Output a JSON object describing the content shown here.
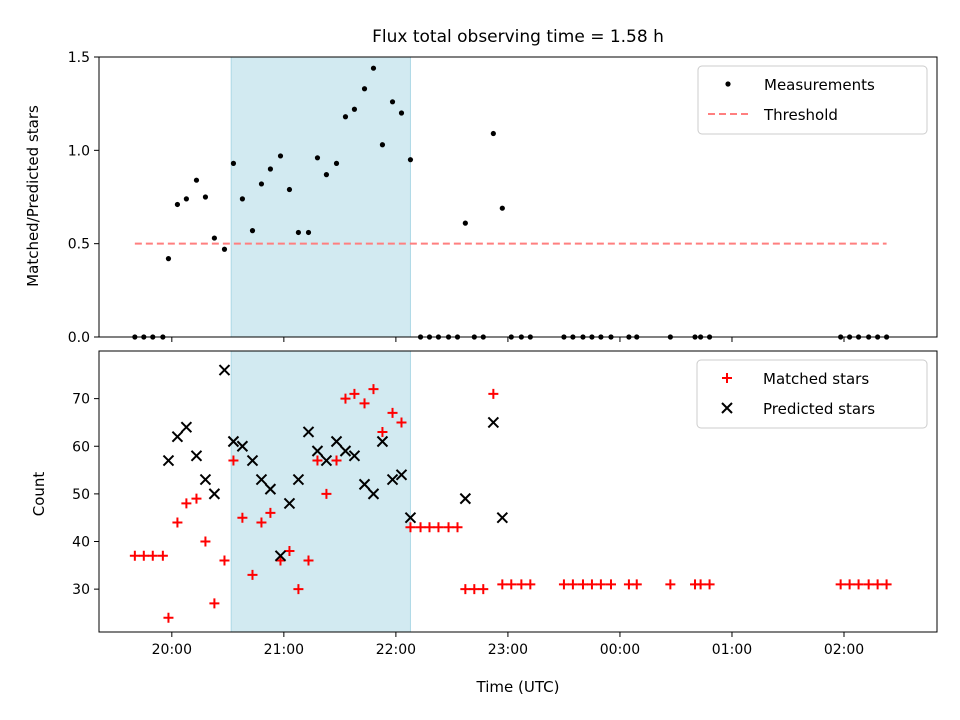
{
  "title": "Flux total observing time = 1.58 h",
  "shading": {
    "x_start": 20.53,
    "x_end": 22.13,
    "color": "#add8e6"
  },
  "x_axis": {
    "label": "Time (UTC)",
    "ticks": [
      20,
      21,
      22,
      23,
      24,
      25,
      26
    ],
    "tick_labels": [
      "20:00",
      "21:00",
      "22:00",
      "23:00",
      "00:00",
      "01:00",
      "02:00"
    ],
    "xlim": [
      19.35,
      26.83
    ]
  },
  "chart_data": [
    {
      "type": "scatter",
      "ylabel": "Matched/Predicted stars",
      "ylim": [
        0,
        1.5
      ],
      "yticks": [
        0.0,
        0.5,
        1.0,
        1.5
      ],
      "ytick_labels": [
        "0.0",
        "0.5",
        "1.0",
        "1.5"
      ],
      "legend": {
        "position": "upper right",
        "entries": [
          "Measurements",
          "Threshold"
        ]
      },
      "series": [
        {
          "name": "Measurements",
          "marker": "dot",
          "color": "#000000",
          "x": [
            19.67,
            19.75,
            19.83,
            19.92,
            19.97,
            20.05,
            20.13,
            20.22,
            20.3,
            20.38,
            20.47,
            20.55,
            20.63,
            20.72,
            20.8,
            20.88,
            20.97,
            21.05,
            21.13,
            21.22,
            21.3,
            21.38,
            21.47,
            21.55,
            21.63,
            21.72,
            21.8,
            21.88,
            21.97,
            22.05,
            22.13,
            22.22,
            22.3,
            22.38,
            22.47,
            22.55,
            22.62,
            22.7,
            22.78,
            22.87,
            22.95,
            23.03,
            23.12,
            23.2,
            23.5,
            23.58,
            23.67,
            23.75,
            23.83,
            23.92,
            24.08,
            24.15,
            24.45,
            24.67,
            24.72,
            24.8,
            25.97,
            26.05,
            26.13,
            26.22,
            26.3,
            26.38
          ],
          "y": [
            0,
            0,
            0,
            0,
            0.42,
            0.71,
            0.74,
            0.84,
            0.75,
            0.53,
            0.47,
            0.93,
            0.74,
            0.57,
            0.82,
            0.9,
            0.97,
            0.79,
            0.56,
            0.56,
            0.96,
            0.87,
            0.93,
            1.18,
            1.22,
            1.33,
            1.44,
            1.03,
            1.26,
            1.2,
            0.95,
            0,
            0,
            0,
            0,
            0,
            0.61,
            0,
            0,
            1.09,
            0.69,
            0,
            0,
            0,
            0,
            0,
            0,
            0,
            0,
            0,
            0,
            0,
            0,
            0,
            0,
            0,
            0,
            0,
            0,
            0,
            0,
            0
          ]
        },
        {
          "name": "Threshold",
          "style": "dashed",
          "color": "#ff7f7f",
          "x": [
            19.67,
            26.38
          ],
          "y": [
            0.5,
            0.5
          ]
        }
      ]
    },
    {
      "type": "scatter",
      "ylabel": "Count",
      "ylim": [
        21,
        80
      ],
      "yticks": [
        30,
        40,
        50,
        60,
        70
      ],
      "ytick_labels": [
        "30",
        "40",
        "50",
        "60",
        "70"
      ],
      "legend": {
        "position": "upper right",
        "entries": [
          "Matched stars",
          "Predicted stars"
        ]
      },
      "series": [
        {
          "name": "Matched stars",
          "marker": "plus",
          "color": "#ff0000",
          "x": [
            19.67,
            19.75,
            19.83,
            19.92,
            19.97,
            20.05,
            20.13,
            20.22,
            20.3,
            20.38,
            20.47,
            20.55,
            20.63,
            20.72,
            20.8,
            20.88,
            20.97,
            21.05,
            21.13,
            21.22,
            21.3,
            21.38,
            21.47,
            21.55,
            21.63,
            21.72,
            21.8,
            21.88,
            21.97,
            22.05,
            22.13,
            22.22,
            22.3,
            22.38,
            22.47,
            22.55,
            22.62,
            22.7,
            22.78,
            22.87,
            22.95,
            23.03,
            23.12,
            23.2,
            23.5,
            23.58,
            23.67,
            23.75,
            23.83,
            23.92,
            24.08,
            24.15,
            24.45,
            24.67,
            24.72,
            24.8,
            25.97,
            26.05,
            26.13,
            26.22,
            26.3,
            26.38
          ],
          "y": [
            37,
            37,
            37,
            37,
            24,
            44,
            48,
            49,
            40,
            27,
            36,
            57,
            45,
            33,
            44,
            46,
            36,
            38,
            30,
            36,
            57,
            50,
            57,
            70,
            71,
            69,
            72,
            63,
            67,
            65,
            43,
            43,
            43,
            43,
            43,
            43,
            30,
            30,
            30,
            71,
            31,
            31,
            31,
            31,
            31,
            31,
            31,
            31,
            31,
            31,
            31,
            31,
            31,
            31,
            31,
            31,
            31,
            31,
            31,
            31,
            31,
            31
          ]
        },
        {
          "name": "Predicted stars",
          "marker": "x",
          "color": "#000000",
          "x": [
            19.97,
            20.05,
            20.13,
            20.22,
            20.3,
            20.38,
            20.47,
            20.55,
            20.63,
            20.72,
            20.8,
            20.88,
            20.97,
            21.05,
            21.13,
            21.22,
            21.3,
            21.38,
            21.47,
            21.55,
            21.63,
            21.72,
            21.8,
            21.88,
            21.97,
            22.05,
            22.13,
            22.62,
            22.87,
            22.95
          ],
          "y": [
            57,
            62,
            64,
            58,
            53,
            50,
            76,
            61,
            60,
            57,
            53,
            51,
            37,
            48,
            53,
            63,
            59,
            57,
            61,
            59,
            58,
            52,
            50,
            61,
            53,
            54,
            45,
            49,
            65,
            45
          ]
        }
      ]
    }
  ]
}
